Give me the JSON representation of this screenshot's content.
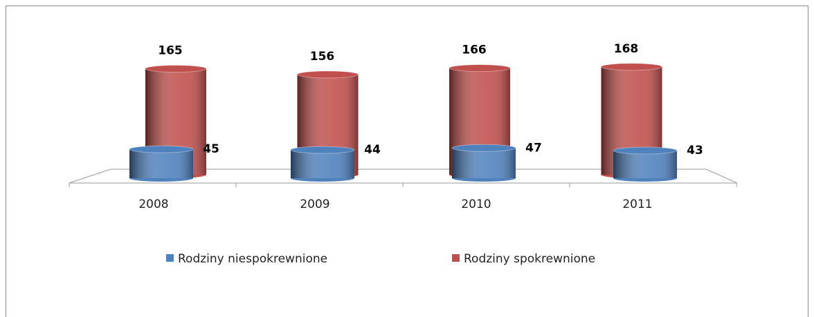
{
  "chart_data": {
    "type": "cylinder-bar",
    "categories": [
      "2008",
      "2009",
      "2010",
      "2011"
    ],
    "series": [
      {
        "name": "Rodziny niespokrewnione",
        "color": "#4f81bd",
        "values": [
          45,
          44,
          47,
          43
        ]
      },
      {
        "name": "Rodziny spokrewnione",
        "color": "#c0504d",
        "values": [
          165,
          156,
          166,
          168
        ]
      }
    ],
    "legend": "bottom"
  }
}
